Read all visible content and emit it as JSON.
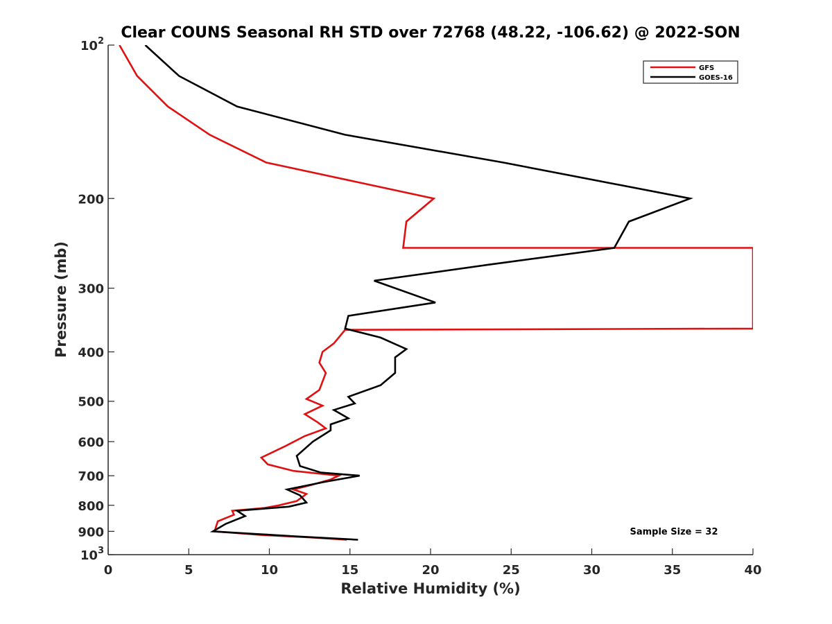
{
  "chart_data": {
    "type": "line",
    "title": "Clear COUNS Seasonal RH STD over 72768 (48.22, -106.62) @ 2022-SON",
    "xlabel": "Relative Humidity (%)",
    "ylabel": "Pressure (mb)",
    "xlim": [
      0,
      40
    ],
    "ylim": [
      100,
      1000
    ],
    "yscale": "log",
    "y_reversed": true,
    "x_ticks": [
      "0",
      "5",
      "10",
      "15",
      "20",
      "25",
      "30",
      "35",
      "40"
    ],
    "y_ticks": [
      {
        "value": 100,
        "label": "10",
        "sup": "2"
      },
      {
        "value": 200,
        "label": "200",
        "sup": ""
      },
      {
        "value": 300,
        "label": "300",
        "sup": ""
      },
      {
        "value": 400,
        "label": "400",
        "sup": ""
      },
      {
        "value": 500,
        "label": "500",
        "sup": ""
      },
      {
        "value": 600,
        "label": "600",
        "sup": ""
      },
      {
        "value": 700,
        "label": "700",
        "sup": ""
      },
      {
        "value": 800,
        "label": "800",
        "sup": ""
      },
      {
        "value": 900,
        "label": "900",
        "sup": ""
      },
      {
        "value": 1000,
        "label": "10",
        "sup": "3"
      }
    ],
    "legend_position": "top-right",
    "annotation": "Sample Size = 32",
    "series": [
      {
        "name": "GFS",
        "color": "#e01010",
        "points": [
          [
            0.7,
            100
          ],
          [
            1.8,
            115
          ],
          [
            3.7,
            132
          ],
          [
            6.3,
            150
          ],
          [
            9.8,
            170
          ],
          [
            20.2,
            200
          ],
          [
            18.5,
            222
          ],
          [
            18.3,
            250
          ],
          [
            40,
            250
          ],
          [
            40,
            360
          ],
          [
            14.7,
            362
          ],
          [
            14.0,
            385
          ],
          [
            13.3,
            400
          ],
          [
            13.1,
            420
          ],
          [
            13.5,
            440
          ],
          [
            13.1,
            475
          ],
          [
            12.3,
            495
          ],
          [
            13.3,
            510
          ],
          [
            12.2,
            530
          ],
          [
            13.0,
            550
          ],
          [
            13.5,
            565
          ],
          [
            12.2,
            585
          ],
          [
            11.0,
            612
          ],
          [
            9.5,
            645
          ],
          [
            9.9,
            665
          ],
          [
            11.5,
            685
          ],
          [
            14.3,
            700
          ],
          [
            13.8,
            712
          ],
          [
            12.6,
            730
          ],
          [
            11.5,
            745
          ],
          [
            12.3,
            760
          ],
          [
            11.7,
            785
          ],
          [
            10.6,
            800
          ],
          [
            9.7,
            810
          ],
          [
            7.7,
            820
          ],
          [
            7.8,
            835
          ],
          [
            6.8,
            860
          ],
          [
            6.6,
            900
          ],
          [
            9.5,
            915
          ],
          [
            12.5,
            925
          ],
          [
            14.8,
            935
          ]
        ]
      },
      {
        "name": "GOES-16",
        "color": "#000000",
        "points": [
          [
            2.3,
            100
          ],
          [
            4.4,
            115
          ],
          [
            8.0,
            132
          ],
          [
            14.7,
            150
          ],
          [
            24.5,
            170
          ],
          [
            36.1,
            200
          ],
          [
            32.3,
            222
          ],
          [
            31.4,
            250
          ],
          [
            23.5,
            270
          ],
          [
            16.5,
            290
          ],
          [
            20.3,
            320
          ],
          [
            14.9,
            340
          ],
          [
            14.7,
            360
          ],
          [
            16.9,
            375
          ],
          [
            18.5,
            395
          ],
          [
            17.8,
            410
          ],
          [
            17.8,
            440
          ],
          [
            16.9,
            465
          ],
          [
            14.9,
            490
          ],
          [
            15.3,
            505
          ],
          [
            14.0,
            520
          ],
          [
            14.9,
            540
          ],
          [
            13.8,
            555
          ],
          [
            13.8,
            570
          ],
          [
            12.7,
            600
          ],
          [
            11.7,
            640
          ],
          [
            11.9,
            670
          ],
          [
            13.2,
            690
          ],
          [
            15.6,
            700
          ],
          [
            13.4,
            720
          ],
          [
            11.1,
            745
          ],
          [
            11.9,
            765
          ],
          [
            12.3,
            790
          ],
          [
            11.2,
            805
          ],
          [
            8.0,
            820
          ],
          [
            8.5,
            840
          ],
          [
            7.3,
            870
          ],
          [
            6.5,
            900
          ],
          [
            11.5,
            920
          ],
          [
            15.5,
            935
          ]
        ]
      }
    ]
  }
}
